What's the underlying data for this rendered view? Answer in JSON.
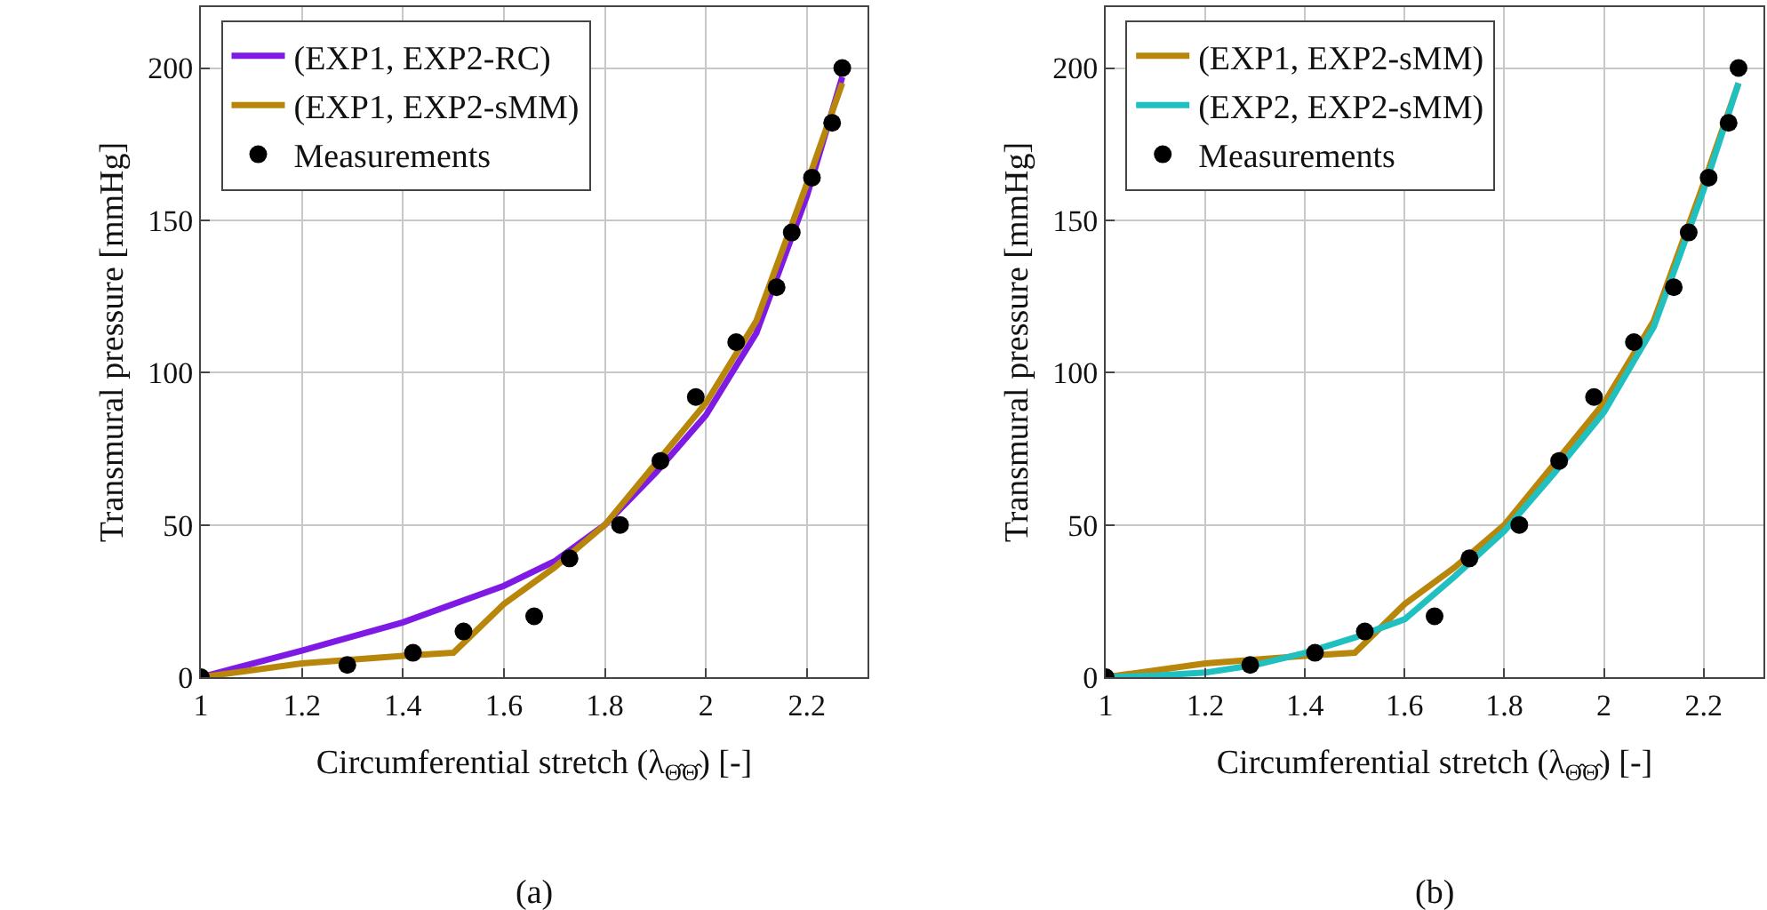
{
  "chart_data": [
    {
      "type": "line",
      "xlabel": "Circumferential stretch (λ$_{Θ̂Θ̂}$) [-]",
      "ylabel": "Transmural pressure [mmHg]",
      "annotations": [
        "(a)"
      ],
      "xlim": [
        1,
        2.32
      ],
      "xticks": [
        1,
        1.2,
        1.4,
        1.6,
        1.8,
        2,
        2.2
      ],
      "ylim": [
        0,
        220
      ],
      "yticks": [
        0,
        50,
        100,
        150,
        200
      ],
      "grid": true,
      "legend": "top left",
      "series": [
        {
          "name": "(EXP1, EXP2-RC)",
          "color": "#7f1ae5",
          "x": [
            1,
            1.2,
            1.4,
            1.6,
            1.7,
            1.8,
            1.9,
            2.0,
            2.1,
            2.2,
            2.27
          ],
          "values": [
            0,
            8.7,
            18,
            30,
            38,
            50,
            67,
            86,
            113,
            158,
            197
          ]
        },
        {
          "name": "(EXP1, EXP2-sMM)",
          "color": "#b8860b",
          "x": [
            1,
            1.2,
            1.4,
            1.5,
            1.6,
            1.7,
            1.8,
            1.9,
            2.0,
            2.1,
            2.2,
            2.27
          ],
          "values": [
            0,
            4.5,
            7,
            8,
            24,
            36,
            50,
            70,
            90,
            117,
            162,
            195
          ]
        },
        {
          "name": "Measurements",
          "color": "#000000",
          "type": "scatter",
          "x": [
            1,
            1.29,
            1.42,
            1.52,
            1.66,
            1.73,
            1.83,
            1.91,
            1.98,
            2.06,
            2.14,
            2.17,
            2.21,
            2.25,
            2.27
          ],
          "values": [
            0,
            4,
            8,
            15,
            20,
            39,
            50,
            71,
            92,
            110,
            128,
            146,
            164,
            182,
            200
          ]
        }
      ]
    },
    {
      "type": "line",
      "xlabel": "Circumferential stretch (λ$_{Θ̂Θ̂}$) [-]",
      "ylabel": "Transmural pressure [mmHg]",
      "annotations": [
        "(b)"
      ],
      "xlim": [
        1,
        2.32
      ],
      "xticks": [
        1,
        1.2,
        1.4,
        1.6,
        1.8,
        2,
        2.2
      ],
      "ylim": [
        0,
        220
      ],
      "yticks": [
        0,
        50,
        100,
        150,
        200
      ],
      "grid": true,
      "legend": "top left",
      "series": [
        {
          "name": "(EXP1, EXP2-sMM)",
          "color": "#b8860b",
          "x": [
            1,
            1.2,
            1.4,
            1.5,
            1.6,
            1.7,
            1.8,
            1.9,
            2.0,
            2.1,
            2.2,
            2.27
          ],
          "values": [
            0,
            4.5,
            7,
            8,
            24,
            36,
            50,
            70,
            90,
            117,
            162,
            195
          ]
        },
        {
          "name": "(EXP2, EXP2-sMM)",
          "color": "#20c0c0",
          "x": [
            1,
            1.1,
            1.2,
            1.3,
            1.4,
            1.5,
            1.6,
            1.7,
            1.8,
            1.9,
            2.0,
            2.1,
            2.2,
            2.27
          ],
          "values": [
            0,
            0.5,
            1.5,
            4,
            8,
            13,
            19,
            33,
            48,
            67,
            87,
            115,
            160,
            195
          ]
        },
        {
          "name": "Measurements",
          "color": "#000000",
          "type": "scatter",
          "x": [
            1,
            1.29,
            1.42,
            1.52,
            1.66,
            1.73,
            1.83,
            1.91,
            1.98,
            2.06,
            2.14,
            2.17,
            2.21,
            2.25,
            2.27
          ],
          "values": [
            0,
            4,
            8,
            15,
            20,
            39,
            50,
            71,
            92,
            110,
            128,
            146,
            164,
            182,
            200
          ]
        }
      ]
    }
  ]
}
